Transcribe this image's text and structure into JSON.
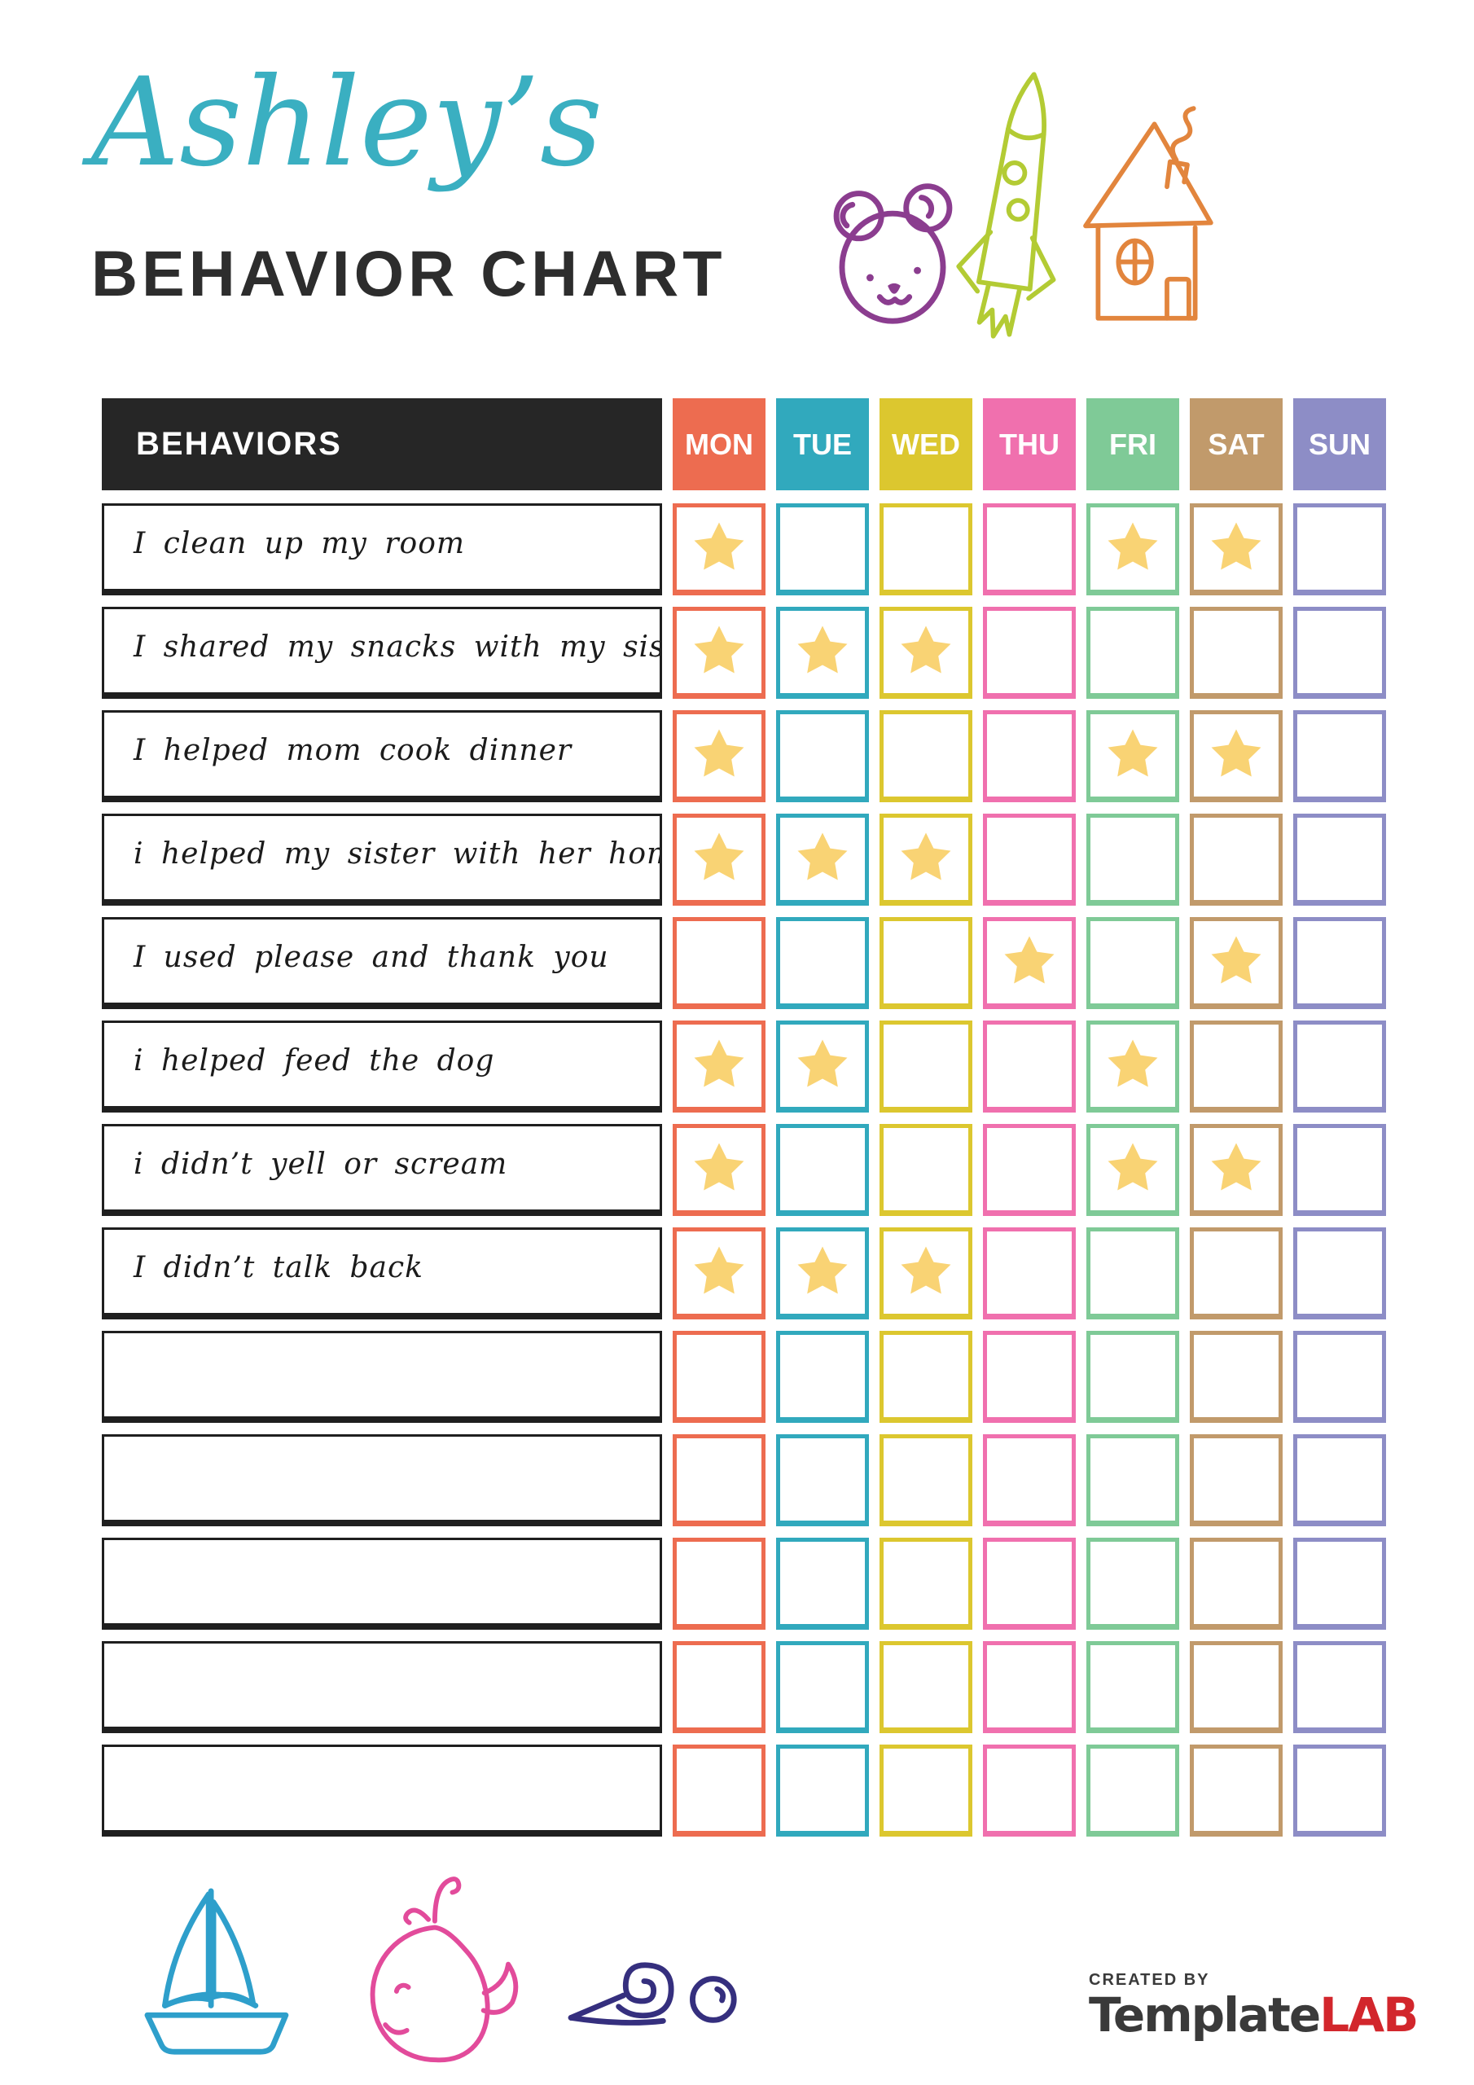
{
  "page": {
    "background": "#ffffff"
  },
  "header": {
    "owner_name": "Ashley’s",
    "owner_name_color": "#3aafc1",
    "title": "BEHAVIOR CHART",
    "title_color": "#2d2d2d",
    "doodles": [
      "bear-icon",
      "rocket-icon",
      "house-icon"
    ],
    "doodle_colors": {
      "bear": "#8b3d8f",
      "rocket": "#b3cb34",
      "house": "#e2853d"
    }
  },
  "table": {
    "behaviors_header": "BEHAVIORS",
    "behaviors_header_bg": "#262626",
    "star_color": "#f9d374",
    "days": [
      {
        "label": "MON",
        "color": "#ed6c50"
      },
      {
        "label": "TUE",
        "color": "#31a9bd"
      },
      {
        "label": "WED",
        "color": "#dcc72f"
      },
      {
        "label": "THU",
        "color": "#f070ae"
      },
      {
        "label": "FRI",
        "color": "#7fca97"
      },
      {
        "label": "SAT",
        "color": "#c19a6b"
      },
      {
        "label": "SUN",
        "color": "#8d8dc6"
      }
    ],
    "rows": [
      {
        "behavior": "I clean up my room",
        "stars": [
          "MON",
          "FRI",
          "SAT"
        ]
      },
      {
        "behavior": "I shared my snacks with my sister",
        "stars": [
          "MON",
          "TUE",
          "WED"
        ]
      },
      {
        "behavior": "I helped mom cook dinner",
        "stars": [
          "MON",
          "FRI",
          "SAT"
        ]
      },
      {
        "behavior": "i helped my sister with her homework",
        "stars": [
          "MON",
          "TUE",
          "WED"
        ]
      },
      {
        "behavior": "I used please and thank you",
        "stars": [
          "THU",
          "SAT"
        ]
      },
      {
        "behavior": "i helped feed the dog",
        "stars": [
          "MON",
          "TUE",
          "FRI"
        ]
      },
      {
        "behavior": "i didn’t yell or scream",
        "stars": [
          "MON",
          "FRI",
          "SAT"
        ]
      },
      {
        "behavior": "I didn’t talk back",
        "stars": [
          "MON",
          "TUE",
          "WED"
        ]
      },
      {
        "behavior": "",
        "stars": []
      },
      {
        "behavior": "",
        "stars": []
      },
      {
        "behavior": "",
        "stars": []
      },
      {
        "behavior": "",
        "stars": []
      },
      {
        "behavior": "",
        "stars": []
      }
    ]
  },
  "footer": {
    "doodles": [
      "sailboat-icon",
      "whale-icon",
      "snail-icon"
    ],
    "doodle_colors": {
      "sailboat": "#2e9fcb",
      "whale": "#e24b9b",
      "snail": "#352f7e"
    },
    "credit": {
      "created_by": "CREATED BY",
      "brand_primary": "Template",
      "brand_accent": "LAB",
      "brand_accent_color": "#d2262c"
    }
  }
}
